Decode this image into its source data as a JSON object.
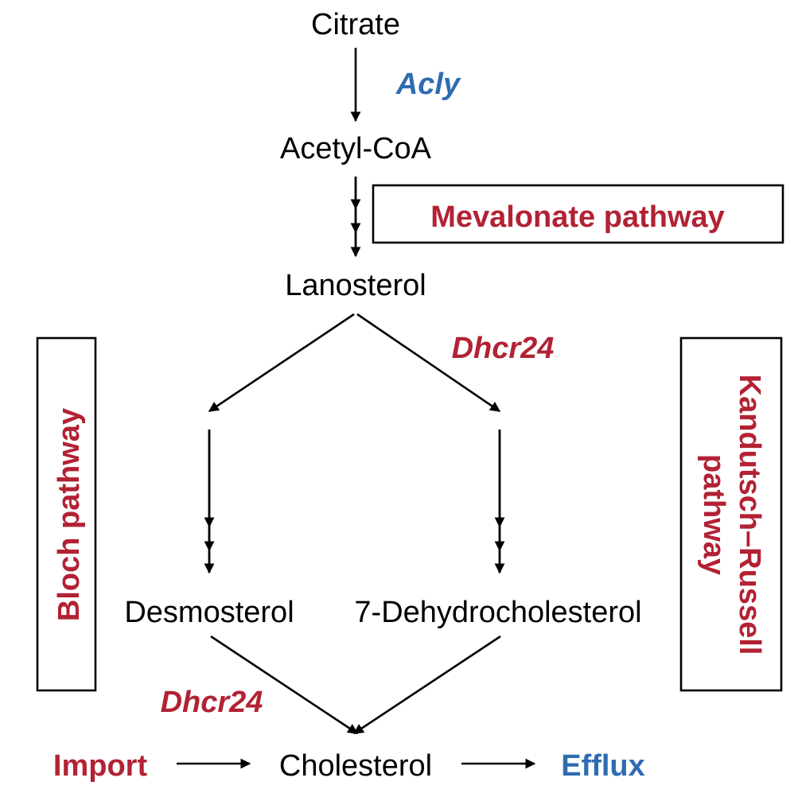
{
  "colors": {
    "red": "#b22234",
    "blue": "#2e6cb0",
    "black": "#000000"
  },
  "metabolites": {
    "citrate": "Citrate",
    "acetyl_coa": "Acetyl-CoA",
    "lanosterol": "Lanosterol",
    "desmosterol": "Desmosterol",
    "dehydrocholesterol": "7-Dehydrocholesterol",
    "cholesterol": "Cholesterol"
  },
  "enzymes": {
    "acly": "Acly",
    "dhcr24_top": "Dhcr24",
    "dhcr24_bottom": "Dhcr24"
  },
  "pathways": {
    "mevalonate": "Mevalonate pathway",
    "bloch": "Bloch pathway",
    "kandutsch_line1": "Kandutsch–Russell",
    "kandutsch_line2": "pathway"
  },
  "transport": {
    "import": "Import",
    "efflux": "Efflux"
  }
}
